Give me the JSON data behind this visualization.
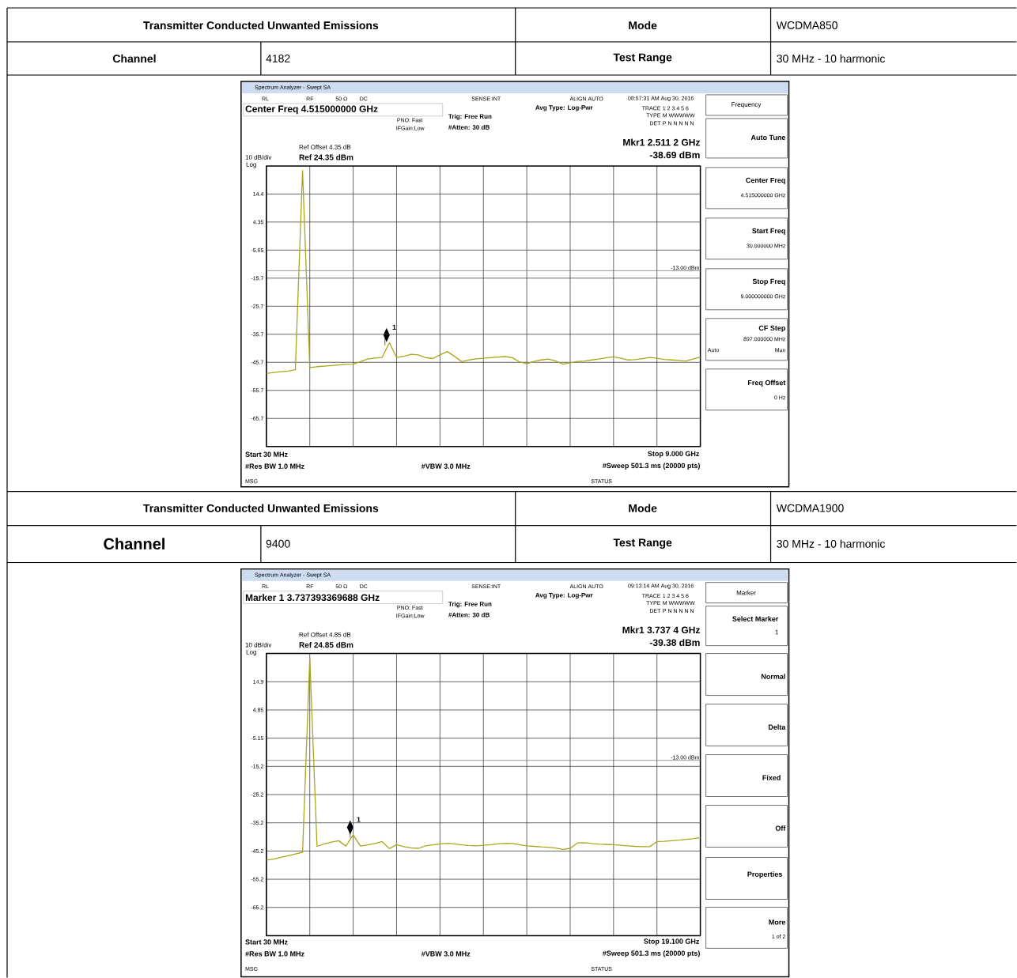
{
  "chart_data": [
    {
      "type": "line",
      "ylim": [
        -75.65,
        24.35
      ],
      "grid": true,
      "tick_labels": "y",
      "color": "#aaa61c",
      "categories": [
        null,
        null,
        null,
        null,
        null,
        null,
        null,
        null,
        null,
        null,
        null,
        null,
        null,
        null,
        null,
        null,
        null,
        null,
        null,
        null,
        null,
        null,
        null,
        null,
        null,
        null,
        null,
        null,
        null,
        null,
        null,
        null,
        null,
        null,
        null,
        null,
        null,
        null,
        null,
        null,
        null,
        null,
        null,
        null,
        null,
        null,
        null,
        null,
        null,
        null,
        null,
        null,
        null,
        null,
        null,
        null,
        null,
        null,
        null,
        null,
        null
      ],
      "yticks": [
        {
          "value": 14.35,
          "label": "14.4"
        },
        {
          "value": 4.35,
          "label": "4.35"
        },
        {
          "value": -5.65,
          "label": "-5.65"
        },
        {
          "value": -15.65,
          "label": "-15.7"
        },
        {
          "value": -25.65,
          "label": "-25.7"
        },
        {
          "value": -35.65,
          "label": "-35.7"
        },
        {
          "value": -45.65,
          "label": "-45.7"
        },
        {
          "value": -55.65,
          "label": "-55.7"
        },
        {
          "value": -65.65,
          "label": "-65.7"
        }
      ],
      "values": [
        -49.6,
        -49.3,
        -49.0,
        -48.8,
        -48.3,
        22.7,
        -47.5,
        -47.2,
        -47.0,
        -46.8,
        -46.6,
        -46.4,
        -46.3,
        -45.4,
        -44.5,
        -44.1,
        -43.9,
        -38.69,
        -43.9,
        -43.5,
        -42.8,
        -43.0,
        -44.0,
        -44.3,
        -43.0,
        -41.8,
        -43.5,
        -45.4,
        -44.8,
        -44.4,
        -44.2,
        -44.0,
        -43.8,
        -43.6,
        -44.0,
        -45.5,
        -46.2,
        -45.3,
        -44.8,
        -44.5,
        -45.2,
        -46.3,
        -45.8,
        -45.3,
        -45.2,
        -44.8,
        -44.5,
        -44.0,
        -43.7,
        -44.2,
        -44.8,
        -44.7,
        -44.3,
        -43.9,
        -44.2,
        -44.6,
        -44.8,
        -45.0,
        -45.2,
        -44.5,
        -43.8
      ],
      "ref_lines": [
        {
          "axis": "y",
          "value": -13,
          "label": "-13.00 dBm",
          "color": "#808080"
        }
      ],
      "annotations": [
        "Transmitter Conducted Unwanted Emissions",
        "Mode",
        "WCDMA850",
        "Channel",
        "4182",
        "Test Range",
        "30 MHz - 10 harmonic",
        "Spectrum Analyzer - Swept SA",
        "RL",
        "RF",
        "50 Ω",
        "DC",
        "SENSE:INT",
        "ALIGN AUTO",
        "08:57:31 AM Aug 30, 2016",
        "Center Freq 4.515000000 GHz",
        "PNO: Fast",
        "IFGain:Low",
        "Trig: Free Run",
        "#Atten: 30 dB",
        "Avg Type: Log-Pwr",
        "TRACE",
        "1 2 3 4 5 6",
        "TYPE",
        "M WWWWW",
        "DET",
        "P N N N N N",
        "Mkr1 2.511 2 GHz",
        "-38.69 dBm",
        "Ref Offset 4.35 dB",
        "Ref 24.35 dBm",
        "10 dB/div",
        "Log",
        "Start 30 MHz",
        "Stop 9.000 GHz",
        "#Res BW 1.0 MHz",
        "#VBW 3.0 MHz",
        "#Sweep  501.3 ms (20000 pts)",
        "MSG",
        "STATUS",
        "Frequency",
        "Auto Tune",
        "Center Freq",
        "4.515000000 GHz",
        "Start Freq",
        "30.000000 MHz",
        "Stop Freq",
        "9.000000000 GHz",
        "CF Step",
        "897.000000 MHz",
        "Auto",
        "Man",
        "Freq Offset",
        "0 Hz",
        "1"
      ]
    },
    {
      "type": "line",
      "ylim": [
        -75.15,
        24.85
      ],
      "grid": true,
      "tick_labels": "y",
      "color": "#aaa61c",
      "categories": [
        null,
        null,
        null,
        null,
        null,
        null,
        null,
        null,
        null,
        null,
        null,
        null,
        null,
        null,
        null,
        null,
        null,
        null,
        null,
        null,
        null,
        null,
        null,
        null,
        null,
        null,
        null,
        null,
        null,
        null,
        null,
        null,
        null,
        null,
        null,
        null,
        null,
        null,
        null,
        null,
        null,
        null,
        null,
        null,
        null,
        null,
        null,
        null,
        null,
        null,
        null,
        null,
        null,
        null,
        null,
        null,
        null,
        null,
        null,
        null,
        null
      ],
      "yticks": [
        {
          "value": 14.85,
          "label": "14.9"
        },
        {
          "value": 4.85,
          "label": "4.85"
        },
        {
          "value": -5.15,
          "label": "-5.15"
        },
        {
          "value": -15.15,
          "label": "-15.2"
        },
        {
          "value": -25.15,
          "label": "-25.2"
        },
        {
          "value": -35.15,
          "label": "-35.2"
        },
        {
          "value": -45.15,
          "label": "-45.2"
        },
        {
          "value": -55.15,
          "label": "-55.2"
        },
        {
          "value": -65.15,
          "label": "-65.2"
        }
      ],
      "values": [
        -48.4,
        -48.0,
        -47.4,
        -46.8,
        -46.2,
        -45.6,
        23.2,
        -43.5,
        -42.6,
        -42.0,
        -41.5,
        -43.4,
        -39.38,
        -43.4,
        -43.0,
        -42.5,
        -41.8,
        -44.3,
        -42.9,
        -43.6,
        -44.0,
        -44.2,
        -43.3,
        -43.0,
        -42.6,
        -42.4,
        -42.6,
        -43.0,
        -43.2,
        -43.3,
        -43.1,
        -42.9,
        -42.6,
        -42.4,
        -42.5,
        -42.9,
        -43.3,
        -43.5,
        -43.7,
        -43.8,
        -44.1,
        -44.6,
        -44.2,
        -42.3,
        -42.2,
        -42.5,
        -42.7,
        -42.8,
        -42.9,
        -43.1,
        -43.3,
        -43.5,
        -43.6,
        -43.6,
        -41.8,
        -41.7,
        -41.5,
        -41.3,
        -41.0,
        -40.8,
        -40.4
      ],
      "ref_lines": [
        {
          "axis": "y",
          "value": -13,
          "label": "-13.00 dBm",
          "color": "#808080"
        }
      ],
      "annotations": [
        "Transmitter Conducted Unwanted Emissions",
        "Mode",
        "WCDMA1900",
        "Channel",
        "9400",
        "Test Range",
        "30 MHz - 10 harmonic",
        "Spectrum Analyzer - Swept SA",
        "RL",
        "RF",
        "50 Ω",
        "DC",
        "SENSE:INT",
        "ALIGN AUTO",
        "09:13:14 AM Aug 30, 2016",
        "Marker 1 3.737393369688 GHz",
        "PNO: Fast",
        "IFGain:Low",
        "Trig: Free Run",
        "#Atten: 30 dB",
        "Avg Type: Log-Pwr",
        "TRACE",
        "1 2 3 4 5 6",
        "TYPE",
        "M WWWWW",
        "DET",
        "P N N N N N",
        "Mkr1 3.737 4 GHz",
        "-39.38 dBm",
        "Ref Offset 4.85 dB",
        "Ref 24.85 dBm",
        "10 dB/div",
        "Log",
        "Start 30 MHz",
        "Stop 19.100 GHz",
        "#Res BW 1.0 MHz",
        "#VBW 3.0 MHz",
        "#Sweep  501.3 ms (20000 pts)",
        "MSG",
        "STATUS",
        "Marker",
        "Select Marker",
        "1",
        "Normal",
        "Delta",
        "Fixed",
        "Off",
        "Properties",
        "More",
        "1 of 2",
        "1"
      ]
    }
  ]
}
